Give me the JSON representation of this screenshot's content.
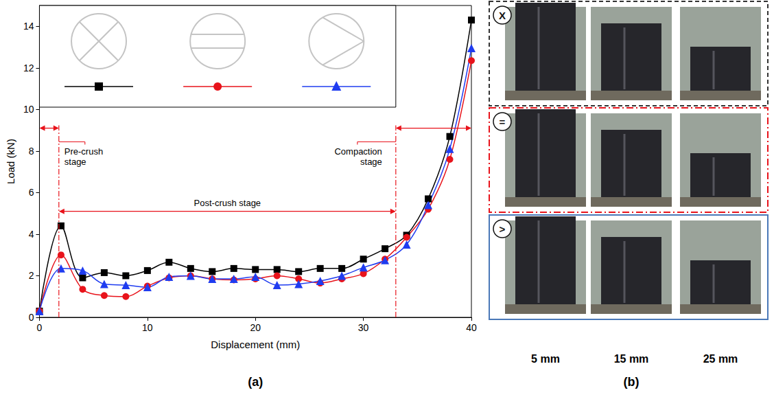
{
  "chart_data": {
    "type": "line",
    "x_label": "Displacement (mm)",
    "y_label": "Load (kN)",
    "x": [
      0,
      2,
      4,
      6,
      8,
      10,
      12,
      14,
      16,
      18,
      20,
      22,
      24,
      26,
      28,
      30,
      32,
      34,
      36,
      38,
      40
    ],
    "series": [
      {
        "color": "#000000",
        "marker": "square",
        "line_style": "solid",
        "values": [
          0.3,
          4.4,
          1.9,
          2.15,
          2.0,
          2.25,
          2.65,
          2.35,
          2.2,
          2.35,
          2.3,
          2.3,
          2.2,
          2.35,
          2.35,
          2.8,
          3.3,
          3.95,
          5.7,
          8.7,
          14.3
        ]
      },
      {
        "color": "#e8131b",
        "marker": "circle",
        "line_style": "solid",
        "values": [
          0.3,
          3.0,
          1.35,
          1.05,
          1.0,
          1.5,
          1.9,
          2.0,
          1.85,
          1.8,
          1.85,
          2.0,
          1.85,
          1.65,
          1.85,
          2.1,
          2.8,
          3.85,
          5.2,
          7.6,
          12.35
        ]
      },
      {
        "color": "#1f3cf0",
        "marker": "triangle",
        "line_style": "solid",
        "values": [
          0.3,
          2.35,
          2.25,
          1.6,
          1.55,
          1.45,
          1.95,
          2.0,
          1.85,
          1.85,
          1.95,
          1.55,
          1.6,
          1.75,
          2.0,
          2.4,
          2.75,
          3.5,
          5.4,
          8.1,
          12.95
        ]
      }
    ],
    "xlim": [
      0,
      40
    ],
    "xticks": [
      0,
      10,
      20,
      30,
      40
    ],
    "ylim": [
      0,
      15
    ],
    "yticks": [
      0,
      2,
      4,
      6,
      8,
      10,
      12,
      14
    ],
    "grid": false,
    "legend": "upper left",
    "annotations": [
      {
        "text": "Pre-crush stage",
        "x_range": [
          0,
          1.8
        ],
        "y": 9.1
      },
      {
        "text": "Post-crush stage",
        "x_range": [
          1.8,
          33
        ],
        "y": 5.1
      },
      {
        "text": "Compaction stage",
        "x_range": [
          33,
          40
        ],
        "y": 9.1
      }
    ]
  },
  "panel_labels": [
    "(a)",
    "(b)"
  ],
  "photos": {
    "rows": [
      "X",
      "=",
      ">"
    ],
    "columns": [
      "5 mm",
      "15 mm",
      "25 mm"
    ]
  }
}
